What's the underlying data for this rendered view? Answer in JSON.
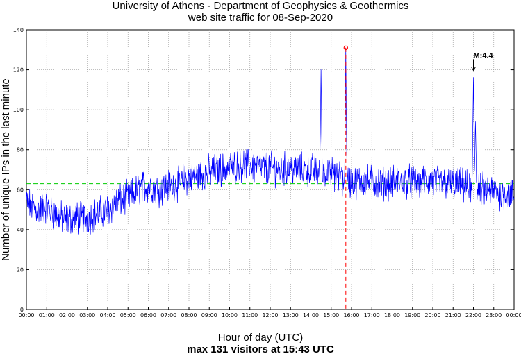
{
  "chart_data": {
    "type": "line",
    "title": "University of Athens - Department of Geophysics & Geothermics",
    "subtitle": "web site traffic for 08-Sep-2020",
    "xlabel": "Hour of day (UTC)",
    "xlabel_sub": "max 131 visitors at 15:43 UTC",
    "ylabel": "Number of unique IPs in the last minute",
    "xlim": [
      0,
      24
    ],
    "ylim": [
      0,
      140
    ],
    "grid": true,
    "x_ticks": [
      "00:00",
      "01:00",
      "02:00",
      "03:00",
      "04:00",
      "05:00",
      "06:00",
      "07:00",
      "08:00",
      "09:00",
      "10:00",
      "11:00",
      "12:00",
      "13:00",
      "14:00",
      "15:00",
      "16:00",
      "17:00",
      "18:00",
      "19:00",
      "20:00",
      "21:00",
      "22:00",
      "23:00",
      "00:00"
    ],
    "y_ticks": [
      "0",
      "20",
      "40",
      "60",
      "80",
      "100",
      "120",
      "140"
    ],
    "mean_line": 63,
    "max_marker": {
      "hour": 15.72,
      "value": 131
    },
    "annotation": {
      "label": "M:4.4",
      "hour": 22.0,
      "value": 119
    },
    "series": [
      {
        "color": "#0000ff",
        "hours": [
          0,
          0.5,
          1,
          1.5,
          2,
          2.5,
          3,
          3.5,
          4,
          4.5,
          5,
          5.5,
          6,
          6.5,
          7,
          7.5,
          8,
          8.5,
          9,
          9.5,
          10,
          10.5,
          11,
          11.5,
          12,
          12.5,
          13,
          13.5,
          14,
          14.5,
          15,
          15.5,
          16,
          16.5,
          17,
          17.5,
          18,
          18.5,
          19,
          19.5,
          20,
          20.5,
          21,
          21.5,
          22,
          22.5,
          23,
          23.5,
          24
        ],
        "values": [
          54,
          50,
          51,
          47,
          45,
          46,
          46,
          48,
          50,
          54,
          56,
          60,
          62,
          60,
          62,
          63,
          66,
          67,
          69,
          70,
          71,
          72,
          72,
          71,
          71,
          70,
          71,
          70,
          70,
          69,
          68,
          66,
          64,
          64,
          64,
          63,
          64,
          64,
          64,
          64,
          64,
          63,
          63,
          62,
          60,
          60,
          59,
          58,
          57
        ]
      }
    ],
    "spikes": [
      {
        "hour": 14.5,
        "value": 118
      },
      {
        "hour": 15.72,
        "value": 131
      },
      {
        "hour": 22.0,
        "value": 119
      },
      {
        "hour": 22.1,
        "value": 96
      }
    ],
    "colors": {
      "series": "#0000ff",
      "mean": "#00cc00",
      "max_marker": "#ff0000"
    }
  }
}
